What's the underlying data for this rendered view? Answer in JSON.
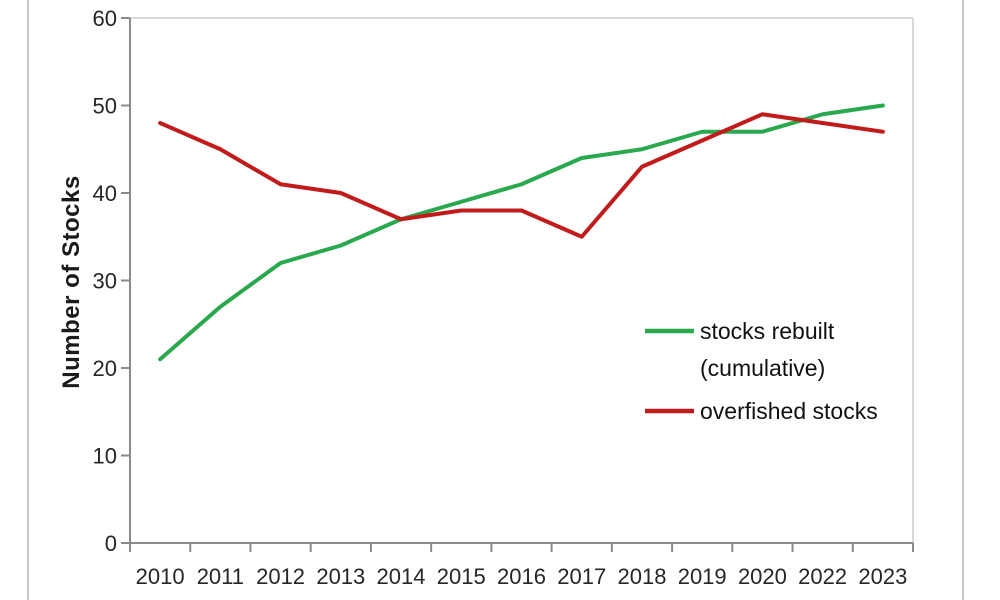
{
  "page": {
    "background": "#ffffff",
    "frame_border_color": "#c7c7c7"
  },
  "chart_data": {
    "type": "line",
    "title": "",
    "xlabel": "",
    "ylabel": "Number of Stocks",
    "categories": [
      "2010",
      "2011",
      "2012",
      "2013",
      "2014",
      "2015",
      "2016",
      "2017",
      "2018",
      "2019",
      "2020",
      "2022",
      "2023"
    ],
    "y_ticks": [
      0,
      10,
      20,
      30,
      40,
      50,
      60
    ],
    "ylim": [
      0,
      60
    ],
    "grid": false,
    "legend_position": "inside-right",
    "series": [
      {
        "name": "stocks rebuilt (cumulative)",
        "legend_lines": [
          "stocks rebuilt",
          "(cumulative)"
        ],
        "color": "#2AA84D",
        "values": [
          21,
          27,
          32,
          34,
          37,
          39,
          41,
          44,
          45,
          47,
          47,
          49,
          50
        ]
      },
      {
        "name": "overfished stocks",
        "legend_lines": [
          "overfished stocks"
        ],
        "color": "#C21B1B",
        "values": [
          48,
          45,
          41,
          40,
          37,
          38,
          38,
          35,
          43,
          46,
          49,
          48,
          47
        ]
      }
    ],
    "styles": {
      "axis_color": "#8a8a8a",
      "plot_border_color": "#d8d8d8",
      "tick_label_color": "#262626",
      "line_width": 4
    }
  }
}
